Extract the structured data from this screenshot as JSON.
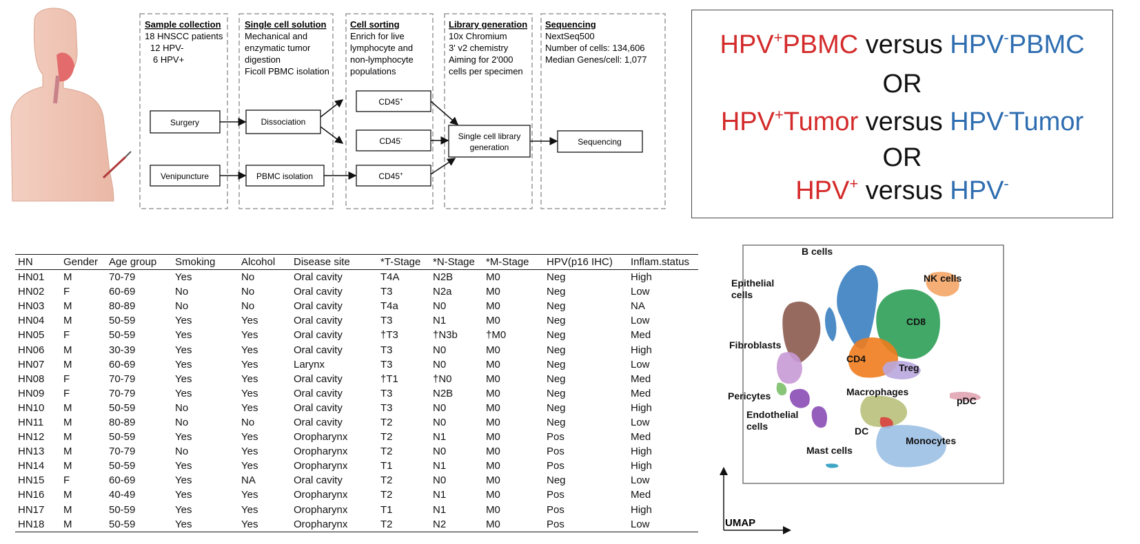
{
  "workflow": {
    "stages": [
      {
        "title": "Sample collection",
        "lines": [
          "18 HNSCC patients",
          "12 HPV-",
          "6 HPV+"
        ]
      },
      {
        "title": "Single cell solution",
        "lines": [
          "Mechanical and",
          "enzymatic tumor",
          "digestion",
          "Ficoll PBMC isolation"
        ]
      },
      {
        "title": "Cell sorting",
        "lines": [
          "Enrich for live",
          "lymphocyte and",
          "non-lymphocyte",
          "populations"
        ]
      },
      {
        "title": "Library generation",
        "lines": [
          "10x Chromium",
          "3' v2 chemistry",
          "Aiming for 2'000",
          "cells per specimen"
        ]
      },
      {
        "title": "Sequencing",
        "lines": [
          "NextSeq500",
          "Number of cells: 134,606",
          "Median Genes/cell: 1,077"
        ]
      }
    ],
    "boxes": {
      "surgery": "Surgery",
      "venipuncture": "Venipuncture",
      "dissociation": "Dissociation",
      "pbmc_isolation": "PBMC isolation",
      "cd45_pos_top": "CD45",
      "cd45_pos_top_sup": "+",
      "cd45_neg": "CD45",
      "cd45_neg_sup": "-",
      "cd45_pos_bottom": "CD45",
      "cd45_pos_bottom_sup": "+",
      "library_line1": "Single cell library",
      "library_line2": "generation",
      "sequencing": "Sequencing"
    }
  },
  "comparisons": {
    "line1": {
      "a": "HPV",
      "a_sup": "+",
      "a_rest": "PBMC",
      "versus": " versus ",
      "b": "HPV",
      "b_sup": "-",
      "b_rest": "PBMC"
    },
    "or1": "OR",
    "line2": {
      "a": "HPV",
      "a_sup": "+",
      "a_rest": "Tumor",
      "versus": " versus ",
      "b": "HPV",
      "b_sup": "-",
      "b_rest": "Tumor"
    },
    "or2": "OR",
    "line3": {
      "a": "HPV",
      "a_sup": "+",
      "versus": " versus ",
      "b": "HPV",
      "b_sup": "-"
    },
    "colors": {
      "hpv_pos": "#d42a2a",
      "hpv_neg": "#2e6db0"
    }
  },
  "table": {
    "columns": [
      "HN",
      "Gender",
      "Age group",
      "Smoking",
      "Alcohol",
      "Disease site",
      "*T-Stage",
      "*N-Stage",
      "*M-Stage",
      "HPV(p16 IHC)",
      "Inflam.status"
    ],
    "rows": [
      [
        "HN01",
        "M",
        "70-79",
        "Yes",
        "No",
        "Oral cavity",
        "T4A",
        "N2B",
        "M0",
        "Neg",
        "High"
      ],
      [
        "HN02",
        "F",
        "60-69",
        "No",
        "No",
        "Oral cavity",
        "T3",
        "N2a",
        "M0",
        "Neg",
        "Low"
      ],
      [
        "HN03",
        "M",
        "80-89",
        "No",
        "No",
        "Oral cavity",
        "T4a",
        "N0",
        "M0",
        "Neg",
        "NA"
      ],
      [
        "HN04",
        "M",
        "50-59",
        "Yes",
        "Yes",
        "Oral cavity",
        "T3",
        "N1",
        "M0",
        "Neg",
        "Low"
      ],
      [
        "HN05",
        "F",
        "50-59",
        "Yes",
        "Yes",
        "Oral cavity",
        "†T3",
        "†N3b",
        "†M0",
        "Neg",
        "Med"
      ],
      [
        "HN06",
        "M",
        "30-39",
        "Yes",
        "Yes",
        "Oral cavity",
        "T3",
        "N0",
        "M0",
        "Neg",
        "High"
      ],
      [
        "HN07",
        "M",
        "60-69",
        "Yes",
        "Yes",
        "Larynx",
        "T3",
        "N0",
        "M0",
        "Neg",
        "Low"
      ],
      [
        "HN08",
        "F",
        "70-79",
        "Yes",
        "Yes",
        "Oral cavity",
        "†T1",
        "†N0",
        "M0",
        "Neg",
        "Med"
      ],
      [
        "HN09",
        "F",
        "70-79",
        "Yes",
        "Yes",
        "Oral cavity",
        "T3",
        "N2B",
        "M0",
        "Neg",
        "Med"
      ],
      [
        "HN10",
        "M",
        "50-59",
        "No",
        "Yes",
        "Oral cavity",
        "T3",
        "N0",
        "M0",
        "Neg",
        "High"
      ],
      [
        "HN11",
        "M",
        "80-89",
        "No",
        "No",
        "Oral cavity",
        "T2",
        "N0",
        "M0",
        "Neg",
        "Low"
      ],
      [
        "HN12",
        "M",
        "50-59",
        "Yes",
        "Yes",
        "Oropharynx",
        "T2",
        "N1",
        "M0",
        "Pos",
        "Med"
      ],
      [
        "HN13",
        "M",
        "70-79",
        "No",
        "Yes",
        "Oropharynx",
        "T2",
        "N0",
        "M0",
        "Pos",
        "High"
      ],
      [
        "HN14",
        "M",
        "50-59",
        "Yes",
        "Yes",
        "Oropharynx",
        "T1",
        "N1",
        "M0",
        "Pos",
        "High"
      ],
      [
        "HN15",
        "F",
        "60-69",
        "Yes",
        "NA",
        "Oral cavity",
        "T2",
        "N0",
        "M0",
        "Neg",
        "Low"
      ],
      [
        "HN16",
        "M",
        "40-49",
        "Yes",
        "Yes",
        "Oropharynx",
        "T2",
        "N1",
        "M0",
        "Pos",
        "Med"
      ],
      [
        "HN17",
        "M",
        "50-59",
        "Yes",
        "Yes",
        "Oropharynx",
        "T1",
        "N1",
        "M0",
        "Pos",
        "High"
      ],
      [
        "HN18",
        "M",
        "50-59",
        "Yes",
        "Yes",
        "Oropharynx",
        "T2",
        "N2",
        "M0",
        "Pos",
        "Low"
      ]
    ]
  },
  "umap": {
    "axis_label": "UMAP",
    "clusters": [
      {
        "name": "B cells",
        "color": "#3a7fc1"
      },
      {
        "name": "NK cells",
        "color": "#f4a667"
      },
      {
        "name": "CD8",
        "color": "#2e9e57"
      },
      {
        "name": "Epithelial",
        "name2": "cells",
        "color": "#8c5a4f"
      },
      {
        "name": "Fibroblasts",
        "color": "#c89ad6"
      },
      {
        "name": "CD4",
        "color": "#f07c1e"
      },
      {
        "name": "Treg",
        "color": "#b9a7de"
      },
      {
        "name": "Pericytes",
        "color": "#7bbf6a"
      },
      {
        "name": "Endothelial",
        "name2": "cells",
        "color": "#8a4bb5"
      },
      {
        "name": "Macrophages",
        "color": "#b9c07a"
      },
      {
        "name": "pDC",
        "color": "#e0a4b2"
      },
      {
        "name": "DC",
        "color": "#d94040"
      },
      {
        "name": "Monocytes",
        "color": "#9cc0e6"
      },
      {
        "name": "Mast cells",
        "color": "#2a9cc0"
      }
    ]
  }
}
